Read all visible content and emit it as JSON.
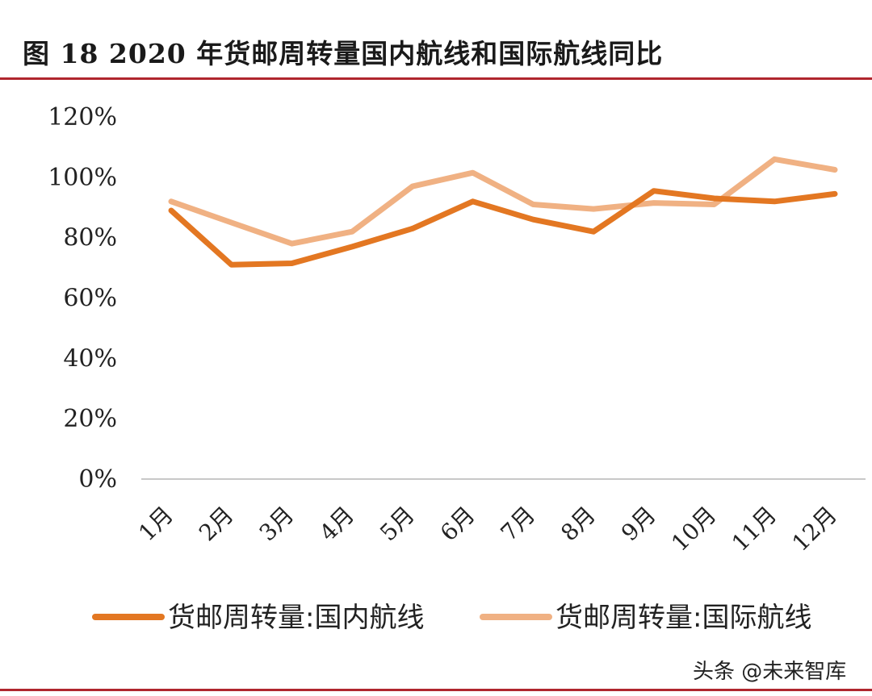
{
  "title": "图  18 2020 年货邮周转量国内航线和国际航线同比",
  "watermark": "头条 @未来智库",
  "chart_data": {
    "type": "line",
    "title": "图  18 2020 年货邮周转量国内航线和国际航线同比",
    "xlabel": "",
    "ylabel": "",
    "categories": [
      "1月",
      "2月",
      "3月",
      "4月",
      "5月",
      "6月",
      "7月",
      "8月",
      "9月",
      "10月",
      "11月",
      "12月"
    ],
    "yticks": [
      "0%",
      "20%",
      "40%",
      "60%",
      "80%",
      "100%",
      "120%"
    ],
    "ylim": [
      0,
      120
    ],
    "grid": false,
    "legend_position": "bottom",
    "series": [
      {
        "name": "货邮周转量:国内航线",
        "color": "#e37722",
        "values": [
          89,
          71,
          71.5,
          77,
          83,
          92,
          86,
          82,
          95.5,
          93,
          92,
          94.5
        ]
      },
      {
        "name": "货邮周转量:国际航线",
        "color": "#f0b183",
        "values": [
          92,
          85,
          78,
          82,
          97,
          101.5,
          91,
          89.5,
          91.5,
          91,
          106,
          102.5
        ]
      }
    ]
  }
}
